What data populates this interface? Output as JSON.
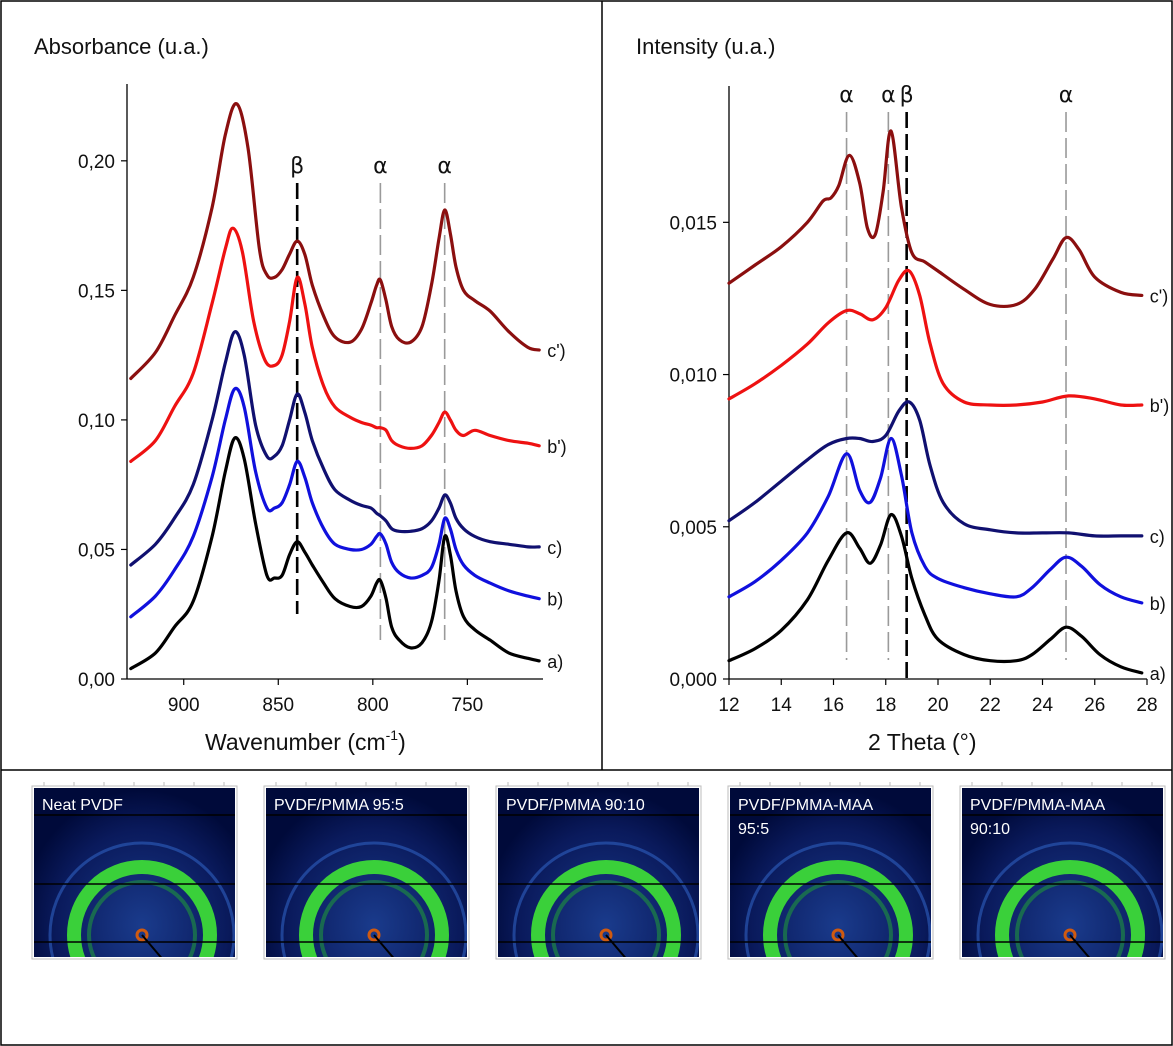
{
  "chart_data": [
    {
      "type": "line",
      "ylabel": "Absorbance (u.a.)",
      "xlabel": "Wavenumber (cm",
      "xlabel_sup": "-1",
      "xlabel_end": ")",
      "xlim": [
        930,
        710
      ],
      "ylim": [
        0,
        0.22
      ],
      "x_ticks": [
        900,
        850,
        800,
        750
      ],
      "x_tick_labels": [
        "900",
        "850",
        "800",
        "750"
      ],
      "y_ticks": [
        0,
        0.05,
        0.1,
        0.15,
        0.2
      ],
      "y_tick_labels": [
        "0,00",
        "0,05",
        "0,10",
        "0,15",
        "0,20"
      ],
      "grid": false,
      "annotations": [
        {
          "text": "β",
          "x": 840,
          "style": "dashed-black"
        },
        {
          "text": "α",
          "x": 796,
          "style": "dashed-gray"
        },
        {
          "text": "α",
          "x": 762,
          "style": "dashed-gray"
        }
      ],
      "series": [
        {
          "name": "a)",
          "color": "#000000",
          "x": [
            928,
            915,
            905,
            895,
            885,
            878,
            873,
            868,
            862,
            856,
            852,
            848,
            844,
            840,
            836,
            832,
            826,
            820,
            812,
            806,
            801,
            798,
            796,
            793,
            790,
            786,
            780,
            774,
            769,
            765,
            762,
            759,
            756,
            752,
            746,
            738,
            728,
            718,
            712
          ],
          "y": [
            0.004,
            0.01,
            0.02,
            0.03,
            0.055,
            0.08,
            0.093,
            0.085,
            0.06,
            0.04,
            0.039,
            0.04,
            0.048,
            0.053,
            0.049,
            0.044,
            0.037,
            0.031,
            0.028,
            0.028,
            0.032,
            0.037,
            0.038,
            0.031,
            0.02,
            0.015,
            0.012,
            0.014,
            0.022,
            0.038,
            0.055,
            0.048,
            0.034,
            0.024,
            0.019,
            0.015,
            0.01,
            0.008,
            0.007
          ]
        },
        {
          "name": "b)",
          "color": "#1010dd",
          "x": [
            928,
            915,
            905,
            895,
            885,
            878,
            873,
            868,
            862,
            856,
            852,
            848,
            844,
            840,
            836,
            832,
            826,
            820,
            812,
            806,
            801,
            798,
            796,
            793,
            790,
            786,
            780,
            774,
            769,
            765,
            762,
            759,
            756,
            752,
            746,
            738,
            728,
            718,
            712
          ],
          "y": [
            0.024,
            0.032,
            0.042,
            0.055,
            0.078,
            0.1,
            0.112,
            0.105,
            0.08,
            0.066,
            0.066,
            0.068,
            0.075,
            0.084,
            0.078,
            0.068,
            0.058,
            0.052,
            0.05,
            0.05,
            0.052,
            0.055,
            0.056,
            0.052,
            0.045,
            0.041,
            0.039,
            0.04,
            0.043,
            0.052,
            0.062,
            0.058,
            0.05,
            0.044,
            0.04,
            0.037,
            0.034,
            0.032,
            0.031
          ]
        },
        {
          "name": "c)",
          "color": "#101070",
          "x": [
            928,
            915,
            905,
            895,
            885,
            878,
            873,
            868,
            862,
            856,
            852,
            848,
            844,
            840,
            836,
            832,
            826,
            820,
            812,
            806,
            801,
            798,
            796,
            793,
            790,
            786,
            780,
            774,
            769,
            765,
            762,
            759,
            756,
            752,
            746,
            738,
            728,
            718,
            712
          ],
          "y": [
            0.044,
            0.052,
            0.062,
            0.075,
            0.1,
            0.122,
            0.134,
            0.125,
            0.098,
            0.086,
            0.086,
            0.09,
            0.1,
            0.11,
            0.103,
            0.092,
            0.081,
            0.073,
            0.069,
            0.067,
            0.066,
            0.064,
            0.063,
            0.061,
            0.058,
            0.057,
            0.057,
            0.058,
            0.061,
            0.066,
            0.071,
            0.068,
            0.062,
            0.058,
            0.055,
            0.053,
            0.052,
            0.051,
            0.051
          ]
        },
        {
          "name": "b')",
          "color": "#ee1111",
          "x": [
            928,
            915,
            905,
            895,
            885,
            878,
            874,
            869,
            863,
            857,
            852,
            848,
            844,
            840,
            836,
            832,
            826,
            820,
            812,
            806,
            801,
            798,
            796,
            793,
            790,
            786,
            780,
            774,
            769,
            765,
            762,
            759,
            756,
            752,
            746,
            738,
            728,
            718,
            712
          ],
          "y": [
            0.084,
            0.092,
            0.105,
            0.118,
            0.145,
            0.166,
            0.174,
            0.165,
            0.138,
            0.123,
            0.121,
            0.125,
            0.138,
            0.155,
            0.145,
            0.128,
            0.113,
            0.105,
            0.101,
            0.099,
            0.098,
            0.097,
            0.097,
            0.096,
            0.092,
            0.09,
            0.089,
            0.09,
            0.094,
            0.099,
            0.103,
            0.1,
            0.096,
            0.094,
            0.096,
            0.094,
            0.092,
            0.091,
            0.09
          ]
        },
        {
          "name": "c')",
          "color": "#8b0f0f",
          "x": [
            928,
            915,
            905,
            895,
            885,
            878,
            872,
            866,
            860,
            856,
            852,
            848,
            844,
            840,
            836,
            832,
            826,
            820,
            812,
            806,
            801,
            798,
            796,
            793,
            790,
            786,
            780,
            774,
            769,
            765,
            762,
            759,
            756,
            752,
            746,
            738,
            728,
            718,
            712
          ],
          "y": [
            0.116,
            0.126,
            0.14,
            0.155,
            0.182,
            0.21,
            0.222,
            0.205,
            0.166,
            0.156,
            0.155,
            0.158,
            0.164,
            0.169,
            0.164,
            0.152,
            0.14,
            0.132,
            0.13,
            0.135,
            0.145,
            0.152,
            0.154,
            0.146,
            0.136,
            0.131,
            0.13,
            0.136,
            0.152,
            0.17,
            0.181,
            0.172,
            0.159,
            0.15,
            0.146,
            0.142,
            0.134,
            0.128,
            0.127
          ]
        }
      ],
      "series_label_order": [
        "a)",
        "b)",
        "c)",
        "b')",
        "c')"
      ]
    },
    {
      "type": "line",
      "ylabel": "Intensity (u.a.)",
      "xlabel": "2 Theta (°)",
      "xlim": [
        12,
        28
      ],
      "ylim": [
        0,
        0.018
      ],
      "x_ticks": [
        12,
        14,
        16,
        18,
        20,
        22,
        24,
        26,
        28
      ],
      "x_tick_labels": [
        "12",
        "14",
        "16",
        "18",
        "20",
        "22",
        "24",
        "26",
        "28"
      ],
      "y_ticks": [
        0,
        0.005,
        0.01,
        0.015
      ],
      "y_tick_labels": [
        "0,000",
        "0,005",
        "0,010",
        "0,015"
      ],
      "grid": false,
      "annotations": [
        {
          "text": "α",
          "x": 16.5,
          "style": "dashed-gray"
        },
        {
          "text": "α",
          "x": 18.1,
          "style": "dashed-gray"
        },
        {
          "text": "β",
          "x": 18.8,
          "style": "dashed-black"
        },
        {
          "text": "α",
          "x": 24.9,
          "style": "dashed-gray"
        }
      ],
      "series": [
        {
          "name": "a)",
          "color": "#000000",
          "x": [
            12,
            13,
            14,
            15,
            15.8,
            16.5,
            17.0,
            17.4,
            17.8,
            18.2,
            18.6,
            19.0,
            19.5,
            20.0,
            21.0,
            22.0,
            23.0,
            23.6,
            24.3,
            24.9,
            25.5,
            26.2,
            27.0,
            27.8
          ],
          "y": [
            0.0006,
            0.001,
            0.0016,
            0.0026,
            0.0039,
            0.0048,
            0.0043,
            0.0038,
            0.0044,
            0.0054,
            0.0047,
            0.0033,
            0.0021,
            0.0013,
            0.0008,
            0.0006,
            0.0006,
            0.0008,
            0.0013,
            0.0017,
            0.0014,
            0.0008,
            0.0004,
            0.0002
          ]
        },
        {
          "name": "b)",
          "color": "#1010dd",
          "x": [
            12,
            13,
            14,
            15,
            15.8,
            16.5,
            17.0,
            17.4,
            17.8,
            18.2,
            18.6,
            19.0,
            19.5,
            20.0,
            21.0,
            22.0,
            23.0,
            23.6,
            24.3,
            24.9,
            25.5,
            26.2,
            27.0,
            27.8
          ],
          "y": [
            0.0027,
            0.0032,
            0.0039,
            0.0048,
            0.006,
            0.0074,
            0.0062,
            0.0058,
            0.0066,
            0.0079,
            0.0067,
            0.0048,
            0.0037,
            0.0033,
            0.003,
            0.0028,
            0.0027,
            0.003,
            0.0036,
            0.004,
            0.0037,
            0.0031,
            0.0027,
            0.0025
          ]
        },
        {
          "name": "c)",
          "color": "#101070",
          "x": [
            12,
            13,
            14,
            15,
            15.8,
            16.5,
            17.0,
            17.5,
            18.0,
            18.5,
            18.9,
            19.3,
            19.7,
            20.2,
            21.0,
            22.0,
            23.0,
            24.0,
            25.0,
            26.0,
            27.0,
            27.8
          ],
          "y": [
            0.0052,
            0.0058,
            0.0065,
            0.0072,
            0.0077,
            0.0079,
            0.0079,
            0.0078,
            0.008,
            0.0088,
            0.0091,
            0.0085,
            0.007,
            0.0058,
            0.0051,
            0.0049,
            0.0048,
            0.0048,
            0.0048,
            0.0047,
            0.0047,
            0.0047
          ]
        },
        {
          "name": "b')",
          "color": "#ee1111",
          "x": [
            12,
            13,
            14,
            15,
            15.8,
            16.5,
            17.0,
            17.5,
            18.0,
            18.5,
            18.9,
            19.3,
            19.7,
            20.2,
            21.0,
            22.0,
            23.0,
            24.0,
            25.0,
            26.0,
            27.0,
            27.8
          ],
          "y": [
            0.0092,
            0.0097,
            0.0103,
            0.011,
            0.0117,
            0.0121,
            0.012,
            0.0118,
            0.0122,
            0.0131,
            0.0134,
            0.0126,
            0.011,
            0.0097,
            0.0091,
            0.009,
            0.009,
            0.0091,
            0.0093,
            0.0092,
            0.009,
            0.009
          ]
        },
        {
          "name": "c')",
          "color": "#8b0f0f",
          "x": [
            12,
            13,
            14,
            15,
            15.6,
            15.9,
            16.2,
            16.6,
            17.0,
            17.3,
            17.6,
            17.9,
            18.2,
            18.6,
            19.0,
            19.5,
            20.0,
            21.0,
            22.0,
            23.0,
            23.7,
            24.4,
            24.9,
            25.4,
            26.0,
            27.0,
            27.8
          ],
          "y": [
            0.013,
            0.0136,
            0.0142,
            0.015,
            0.0157,
            0.0158,
            0.0162,
            0.0172,
            0.0163,
            0.0148,
            0.0146,
            0.016,
            0.018,
            0.0155,
            0.014,
            0.0137,
            0.0134,
            0.0128,
            0.0123,
            0.0123,
            0.0128,
            0.0138,
            0.0145,
            0.0141,
            0.0132,
            0.0127,
            0.0126
          ]
        }
      ],
      "series_label_order": [
        "a)",
        "b)",
        "c)",
        "b')",
        "c')"
      ]
    }
  ],
  "pattern_panel": {
    "labels": [
      [
        "Neat PVDF"
      ],
      [
        "PVDF/PMMA 95:5"
      ],
      [
        "PVDF/PMMA 90:10"
      ],
      [
        "PVDF/PMMA-MAA",
        "95:5"
      ],
      [
        "PVDF/PMMA-MAA",
        "90:10"
      ]
    ],
    "colors": {
      "background": "#000a3a",
      "ring": "#3ad03a",
      "ring_outer": "#2a55b0",
      "center": "#d05a10"
    }
  }
}
